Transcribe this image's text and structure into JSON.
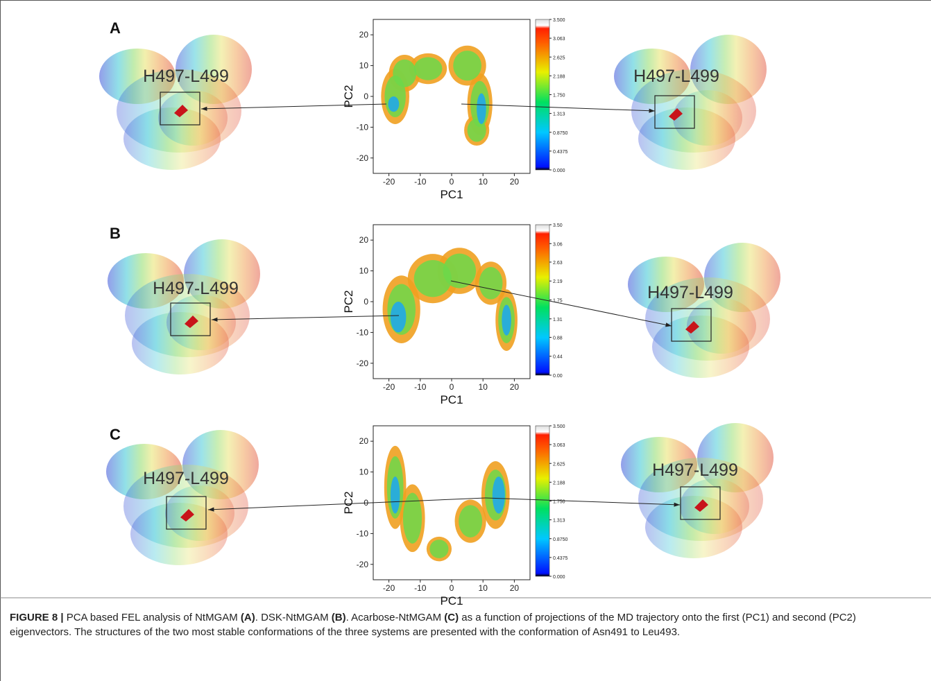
{
  "panels": [
    {
      "label": "A",
      "left_label": "H497-L499",
      "right_label": "H497-L499",
      "plot": {
        "xlabel": "PC1",
        "ylabel": "PC2",
        "xlim": [
          -25,
          25
        ],
        "ylim": [
          -25,
          25
        ],
        "xticks": [
          -20,
          -10,
          0,
          10,
          20
        ],
        "yticks": [
          -20,
          -10,
          0,
          10,
          20
        ],
        "colorbar": {
          "lim": [
            0,
            3.5
          ],
          "ticks": [
            {
              "value": 0,
              "label": "0.000"
            },
            {
              "value": 0.4375,
              "label": "0.4375"
            },
            {
              "value": 0.875,
              "label": "0.8750"
            },
            {
              "value": 1.313,
              "label": "1.313"
            },
            {
              "value": 1.75,
              "label": "1.750"
            },
            {
              "value": 2.188,
              "label": "2.188"
            },
            {
              "value": 2.625,
              "label": "2.625"
            },
            {
              "value": 3.063,
              "label": "3.063"
            },
            {
              "value": 3.5,
              "label": "3.500"
            }
          ]
        }
      }
    },
    {
      "label": "B",
      "left_label": "H497-L499",
      "right_label": "H497-L499",
      "plot": {
        "xlabel": "PC1",
        "ylabel": "PC2",
        "xlim": [
          -25,
          25
        ],
        "ylim": [
          -25,
          25
        ],
        "xticks": [
          -20,
          -10,
          0,
          10,
          20
        ],
        "yticks": [
          -20,
          -10,
          0,
          10,
          20
        ],
        "colorbar": {
          "lim": [
            0,
            3.5
          ],
          "ticks": [
            {
              "value": 0,
              "label": "0.00"
            },
            {
              "value": 0.44,
              "label": "0.44"
            },
            {
              "value": 0.88,
              "label": "0.88"
            },
            {
              "value": 1.31,
              "label": "1.31"
            },
            {
              "value": 1.75,
              "label": "1.75"
            },
            {
              "value": 2.19,
              "label": "2.19"
            },
            {
              "value": 2.63,
              "label": "2.63"
            },
            {
              "value": 3.06,
              "label": "3.06"
            },
            {
              "value": 3.5,
              "label": "3.50"
            }
          ]
        }
      }
    },
    {
      "label": "C",
      "left_label": "H497-L499",
      "right_label": "H497-L499",
      "plot": {
        "xlabel": "PC1",
        "ylabel": "PC2",
        "xlim": [
          -25,
          25
        ],
        "ylim": [
          -25,
          25
        ],
        "xticks": [
          -20,
          -10,
          0,
          10,
          20
        ],
        "yticks": [
          -20,
          -10,
          0,
          10,
          20
        ],
        "colorbar": {
          "lim": [
            0,
            3.5
          ],
          "ticks": [
            {
              "value": 0,
              "label": "0.000"
            },
            {
              "value": 0.4375,
              "label": "0.4375"
            },
            {
              "value": 0.875,
              "label": "0.8750"
            },
            {
              "value": 1.313,
              "label": "1.313"
            },
            {
              "value": 1.75,
              "label": "1.750"
            },
            {
              "value": 2.188,
              "label": "2.188"
            },
            {
              "value": 2.625,
              "label": "2.625"
            },
            {
              "value": 3.063,
              "label": "3.063"
            },
            {
              "value": 3.5,
              "label": "3.500"
            }
          ]
        }
      }
    }
  ],
  "caption": {
    "label": "FIGURE 8 |",
    "parts": [
      " PCA based FEL analysis of NtMGAM ",
      "(A)",
      ". DSK-NtMGAM ",
      "(B)",
      ". Acarbose-NtMGAM ",
      "(C)",
      " as a function of projections of the MD trajectory onto the first (PC1) and second (PC2) eigenvectors. The structures of the two most stable conformations of the three systems are presented with the conformation of Asn491 to Leu493."
    ]
  }
}
